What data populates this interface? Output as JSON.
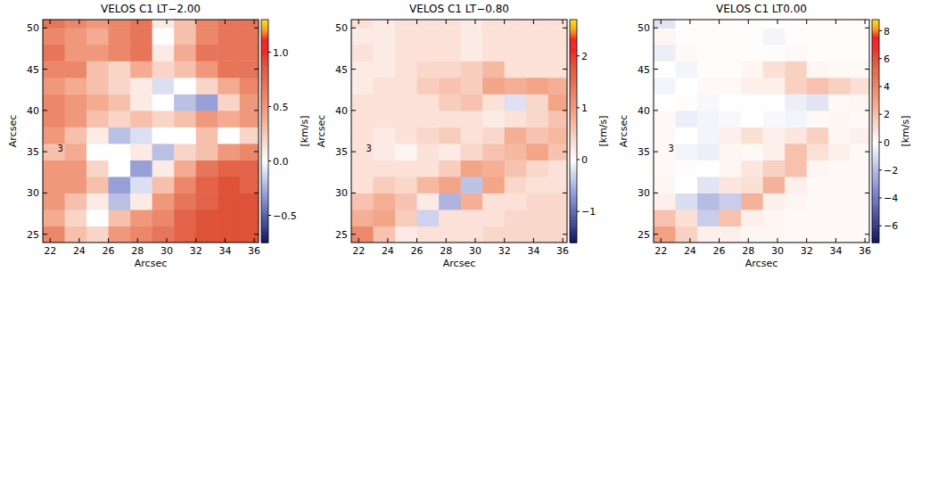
{
  "chart_data": [
    {
      "type": "heatmap",
      "title": "VELOS C1 LT−2.00",
      "x_label": "Arcsec",
      "y_label": "Arcsec",
      "colorbar_label": "[km/s]",
      "xlim": [
        21.5,
        36.3
      ],
      "ylim": [
        24,
        51
      ],
      "xticks": [
        22,
        24,
        26,
        28,
        30,
        32,
        34,
        36
      ],
      "yticks": [
        25,
        30,
        35,
        40,
        45,
        50
      ],
      "zlim": [
        -0.75,
        1.3
      ],
      "zticks": [
        {
          "value": -0.5,
          "label": "−0.5"
        },
        {
          "value": 0,
          "label": "0.0"
        },
        0.5,
        {
          "value": 1,
          "label": "1.0"
        }
      ],
      "x_edges": [
        21.5,
        23,
        24.5,
        26,
        27.5,
        29,
        30.5,
        32,
        33.5,
        35,
        36.5
      ],
      "y_edges": [
        24,
        26,
        28,
        30,
        32,
        34,
        36,
        38,
        40,
        42,
        44,
        46,
        48,
        50,
        52
      ],
      "z": [
        [
          0.6,
          0.3,
          0.2,
          0.5,
          0.6,
          0.7,
          0.8,
          0.9,
          0.9,
          0.9
        ],
        [
          0.4,
          0.2,
          0.0,
          0.3,
          0.5,
          0.6,
          0.8,
          0.9,
          0.9,
          0.9
        ],
        [
          0.5,
          0.3,
          0.1,
          -0.2,
          0.1,
          0.5,
          0.7,
          0.8,
          0.9,
          0.9
        ],
        [
          0.5,
          0.5,
          0.3,
          -0.3,
          -0.1,
          0.3,
          0.6,
          0.8,
          0.9,
          0.8
        ],
        [
          0.5,
          0.5,
          0.2,
          0.0,
          -0.3,
          0.1,
          0.4,
          0.7,
          0.8,
          0.8
        ],
        [
          0.3,
          0.4,
          0.0,
          0.0,
          0.1,
          -0.2,
          0.2,
          0.3,
          0.5,
          0.6
        ],
        [
          0.5,
          0.3,
          0.1,
          -0.2,
          -0.1,
          0.0,
          0.0,
          0.3,
          0.0,
          0.2
        ],
        [
          0.6,
          0.5,
          0.3,
          0.2,
          0.3,
          0.2,
          0.3,
          0.5,
          0.4,
          0.5
        ],
        [
          0.6,
          0.5,
          0.4,
          0.3,
          0.1,
          0.0,
          -0.2,
          -0.3,
          0.2,
          0.5
        ],
        [
          0.5,
          0.4,
          0.3,
          0.2,
          0.1,
          -0.1,
          0.0,
          0.2,
          0.4,
          0.6
        ],
        [
          0.6,
          0.6,
          0.3,
          0.2,
          0.4,
          0.2,
          0.3,
          0.5,
          0.7,
          0.7
        ],
        [
          0.7,
          0.5,
          0.5,
          0.6,
          0.7,
          0.1,
          0.4,
          0.7,
          0.7,
          0.7
        ],
        [
          0.6,
          0.5,
          0.4,
          0.6,
          0.7,
          0.0,
          0.3,
          0.6,
          0.7,
          0.7
        ],
        [
          0.7,
          0.6,
          0.5,
          0.6,
          0.7,
          0.1,
          0.3,
          0.6,
          0.7,
          0.7
        ]
      ],
      "annotations": [
        {
          "text": "3",
          "x": 22.7,
          "y": 35.4
        }
      ]
    },
    {
      "type": "heatmap",
      "title": "VELOS C1 LT−0.80",
      "x_label": "Arcsec",
      "y_label": "Arcsec",
      "colorbar_label": "[km/s]",
      "xlim": [
        21.5,
        36.3
      ],
      "ylim": [
        24,
        51
      ],
      "xticks": [
        22,
        24,
        26,
        28,
        30,
        32,
        34,
        36
      ],
      "yticks": [
        25,
        30,
        35,
        40,
        45,
        50
      ],
      "zlim": [
        -1.6,
        2.7
      ],
      "zticks": [
        {
          "value": -1,
          "label": "−1"
        },
        0,
        1,
        2
      ],
      "x_edges": [
        21.5,
        23,
        24.5,
        26,
        27.5,
        29,
        30.5,
        32,
        33.5,
        35,
        36.5
      ],
      "y_edges": [
        24,
        26,
        28,
        30,
        32,
        34,
        36,
        38,
        40,
        42,
        44,
        46,
        48,
        50,
        52
      ],
      "z": [
        [
          1.2,
          0.6,
          0.2,
          0.3,
          0.3,
          0.3,
          0.4,
          0.4,
          0.4,
          0.4
        ],
        [
          0.8,
          0.9,
          0.5,
          -0.3,
          0.3,
          0.3,
          0.3,
          0.4,
          0.4,
          0.4
        ],
        [
          0.6,
          0.8,
          0.6,
          0.2,
          -0.5,
          0.8,
          0.3,
          0.3,
          0.4,
          0.4
        ],
        [
          0.3,
          0.5,
          0.4,
          0.7,
          0.9,
          -0.4,
          0.9,
          0.4,
          0.3,
          0.3
        ],
        [
          0.3,
          0.3,
          0.3,
          0.3,
          0.5,
          0.9,
          0.8,
          0.6,
          0.4,
          0.3
        ],
        [
          0.3,
          0.2,
          0.1,
          0.3,
          0.2,
          0.4,
          0.6,
          0.7,
          0.9,
          0.6
        ],
        [
          0.3,
          0.2,
          0.3,
          0.4,
          0.5,
          0.3,
          0.4,
          0.8,
          0.6,
          0.7
        ],
        [
          0.3,
          0.3,
          0.3,
          0.3,
          0.3,
          0.3,
          0.2,
          0.3,
          0.4,
          0.6
        ],
        [
          0.3,
          0.3,
          0.3,
          0.3,
          0.5,
          0.6,
          0.3,
          -0.2,
          0.4,
          0.9
        ],
        [
          0.2,
          0.3,
          0.3,
          0.5,
          0.6,
          0.5,
          0.9,
          0.8,
          0.9,
          0.8
        ],
        [
          0.2,
          0.2,
          0.3,
          0.4,
          0.4,
          0.5,
          0.7,
          0.3,
          0.3,
          0.3
        ],
        [
          0.3,
          0.2,
          0.3,
          0.3,
          0.3,
          0.2,
          0.3,
          0.3,
          0.3,
          0.3
        ],
        [
          0.2,
          0.2,
          0.3,
          0.3,
          0.3,
          0.2,
          0.3,
          0.3,
          0.3,
          0.3
        ],
        [
          0.3,
          0.2,
          0.3,
          0.3,
          0.3,
          0.2,
          0.3,
          0.3,
          0.3,
          0.3
        ]
      ],
      "annotations": [
        {
          "text": "3",
          "x": 22.7,
          "y": 35.4
        }
      ]
    },
    {
      "type": "heatmap",
      "title": "VELOS C1 LT0.00",
      "x_label": "Arcsec",
      "y_label": "Arcsec",
      "colorbar_label": "[km/s]",
      "xlim": [
        21.5,
        36.3
      ],
      "ylim": [
        24,
        51
      ],
      "xticks": [
        22,
        24,
        26,
        28,
        30,
        32,
        34,
        36
      ],
      "yticks": [
        25,
        30,
        35,
        40,
        45,
        50
      ],
      "zlim": [
        -7.2,
        8.8
      ],
      "zticks": [
        {
          "value": -6,
          "label": "−6"
        },
        {
          "value": -4,
          "label": "−4"
        },
        {
          "value": -2,
          "label": "−2"
        },
        0,
        2,
        4,
        6,
        8
      ],
      "x_edges": [
        21.5,
        23,
        24.5,
        26,
        27.5,
        29,
        30.5,
        32,
        33.5,
        35,
        36.5
      ],
      "y_edges": [
        24,
        26,
        28,
        30,
        32,
        34,
        36,
        38,
        40,
        42,
        44,
        46,
        48,
        50,
        52
      ],
      "z": [
        [
          3.0,
          1.5,
          0.5,
          0.5,
          0.3,
          0.3,
          0.2,
          0.2,
          0.2,
          0.2
        ],
        [
          2.0,
          1.0,
          -1.5,
          2.0,
          0.5,
          0.3,
          0.2,
          0.2,
          0.2,
          0.2
        ],
        [
          0.5,
          -1.0,
          -2.0,
          -1.5,
          2.5,
          0.5,
          0.3,
          0.2,
          0.2,
          0.2
        ],
        [
          0.3,
          0.0,
          -0.8,
          0.8,
          1.0,
          2.5,
          0.5,
          0.2,
          0.2,
          0.2
        ],
        [
          0.2,
          0.1,
          0.0,
          0.3,
          0.8,
          1.5,
          2.0,
          0.3,
          0.2,
          0.2
        ],
        [
          0.2,
          -0.3,
          -0.5,
          0.3,
          0.2,
          0.5,
          2.0,
          1.0,
          0.5,
          0.2
        ],
        [
          0.2,
          0.0,
          -0.3,
          0.5,
          1.0,
          0.5,
          0.8,
          1.5,
          0.3,
          0.5
        ],
        [
          0.2,
          -0.5,
          -0.3,
          -0.2,
          0.0,
          -0.2,
          -0.3,
          0.2,
          0.3,
          0.2
        ],
        [
          0.0,
          0.1,
          -0.2,
          0.0,
          0.0,
          0.0,
          -0.5,
          -0.8,
          0.2,
          0.3
        ],
        [
          -0.3,
          0.0,
          0.2,
          0.2,
          0.5,
          0.5,
          1.5,
          2.0,
          1.5,
          1.0
        ],
        [
          0.0,
          -0.3,
          0.1,
          0.1,
          0.3,
          1.0,
          1.5,
          0.3,
          0.2,
          0.2
        ],
        [
          -0.5,
          0.2,
          0.1,
          0.1,
          0.1,
          0.1,
          0.2,
          0.1,
          0.1,
          0.1
        ],
        [
          0.3,
          0.1,
          0.1,
          0.1,
          0.1,
          -0.3,
          0.1,
          0.1,
          0.1,
          0.1
        ],
        [
          -0.8,
          0.1,
          0.1,
          0.1,
          0.1,
          0.0,
          0.1,
          0.1,
          0.1,
          0.1
        ]
      ],
      "annotations": [
        {
          "text": "3",
          "x": 22.7,
          "y": 35.4
        }
      ]
    }
  ]
}
